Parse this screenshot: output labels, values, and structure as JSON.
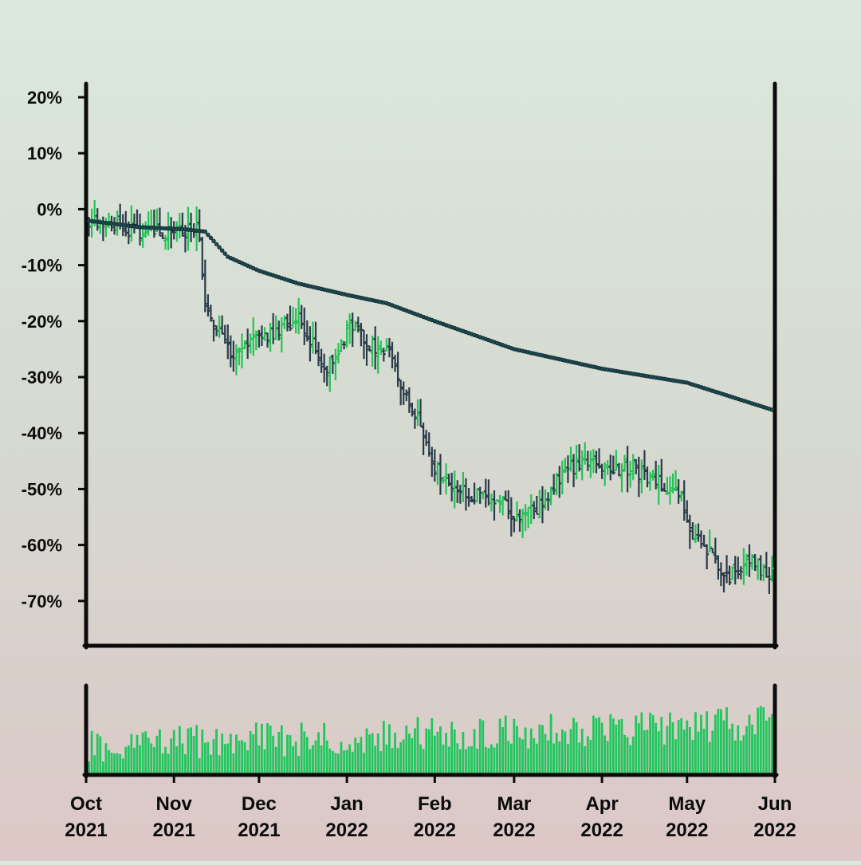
{
  "chart_data": {
    "type": "ohlc",
    "y_tick_labels": [
      "20%",
      "10%",
      "0%",
      "-10%",
      "-20%",
      "-30%",
      "-40%",
      "-50%",
      "-60%",
      "-70%"
    ],
    "y_ticks": [
      20,
      10,
      0,
      -10,
      -20,
      -30,
      -40,
      -50,
      -60,
      -70
    ],
    "ylim": [
      -78,
      22
    ],
    "x_tick_labels": [
      {
        "month": "Oct",
        "year": "2021"
      },
      {
        "month": "Nov",
        "year": "2021"
      },
      {
        "month": "Dec",
        "year": "2021"
      },
      {
        "month": "Jan",
        "year": "2022"
      },
      {
        "month": "Feb",
        "year": "2022"
      },
      {
        "month": "Mar",
        "year": "2022"
      },
      {
        "month": "Apr",
        "year": "2022"
      },
      {
        "month": "May",
        "year": "2022"
      },
      {
        "month": "Jun",
        "year": "2022"
      }
    ],
    "x_ticks": [
      "2021-10-01",
      "2021-11-01",
      "2021-12-01",
      "2022-01-01",
      "2022-02-01",
      "2022-03-01",
      "2022-04-01",
      "2022-05-01",
      "2022-06-01"
    ],
    "xlim": [
      "2021-10-01",
      "2022-06-01"
    ],
    "price_anchors": [
      [
        "2021-10-01",
        -2
      ],
      [
        "2021-10-10",
        -3
      ],
      [
        "2021-10-20",
        -4
      ],
      [
        "2021-10-30",
        -4
      ],
      [
        "2021-11-10",
        -4
      ],
      [
        "2021-11-12",
        -18
      ],
      [
        "2021-11-22",
        -27
      ],
      [
        "2021-11-28",
        -24
      ],
      [
        "2021-12-05",
        -22
      ],
      [
        "2021-12-15",
        -20
      ],
      [
        "2021-12-20",
        -24
      ],
      [
        "2021-12-25",
        -28
      ],
      [
        "2021-12-29",
        -25
      ],
      [
        "2022-01-02",
        -21
      ],
      [
        "2022-01-08",
        -24
      ],
      [
        "2022-01-15",
        -25
      ],
      [
        "2022-01-22",
        -33
      ],
      [
        "2022-02-01",
        -46
      ],
      [
        "2022-02-08",
        -50
      ],
      [
        "2022-02-15",
        -51
      ],
      [
        "2022-02-25",
        -52
      ],
      [
        "2022-03-03",
        -56
      ],
      [
        "2022-03-10",
        -53
      ],
      [
        "2022-03-18",
        -47
      ],
      [
        "2022-03-25",
        -45
      ],
      [
        "2022-04-02",
        -47
      ],
      [
        "2022-04-10",
        -46
      ],
      [
        "2022-04-20",
        -48
      ],
      [
        "2022-04-28",
        -51
      ],
      [
        "2022-05-03",
        -58
      ],
      [
        "2022-05-10",
        -62
      ],
      [
        "2022-05-16",
        -66
      ],
      [
        "2022-05-22",
        -63
      ],
      [
        "2022-06-01",
        -65
      ]
    ],
    "ma_anchors": [
      [
        "2021-10-01",
        -2
      ],
      [
        "2021-10-20",
        -3.2
      ],
      [
        "2021-11-05",
        -3.6
      ],
      [
        "2021-11-12",
        -4
      ],
      [
        "2021-11-20",
        -8.5
      ],
      [
        "2021-12-01",
        -11
      ],
      [
        "2021-12-15",
        -13.3
      ],
      [
        "2022-01-01",
        -15.3
      ],
      [
        "2022-01-15",
        -16.8
      ],
      [
        "2022-02-01",
        -20
      ],
      [
        "2022-03-01",
        -25
      ],
      [
        "2022-04-01",
        -28.5
      ],
      [
        "2022-05-01",
        -31
      ],
      [
        "2022-06-01",
        -36
      ]
    ],
    "volume_range": [
      10,
      98
    ],
    "colors": {
      "up": "#25c356",
      "down": "#2b3a49",
      "volume": "#22c55e",
      "ma_fill": "#1e4d55",
      "ma_edge": "#0b2128",
      "axis": "#0b0b0b"
    },
    "series": [
      {
        "role": "price"
      },
      {
        "role": "moving-average"
      },
      {
        "role": "volume"
      }
    ],
    "grid": false,
    "legend": "none"
  }
}
